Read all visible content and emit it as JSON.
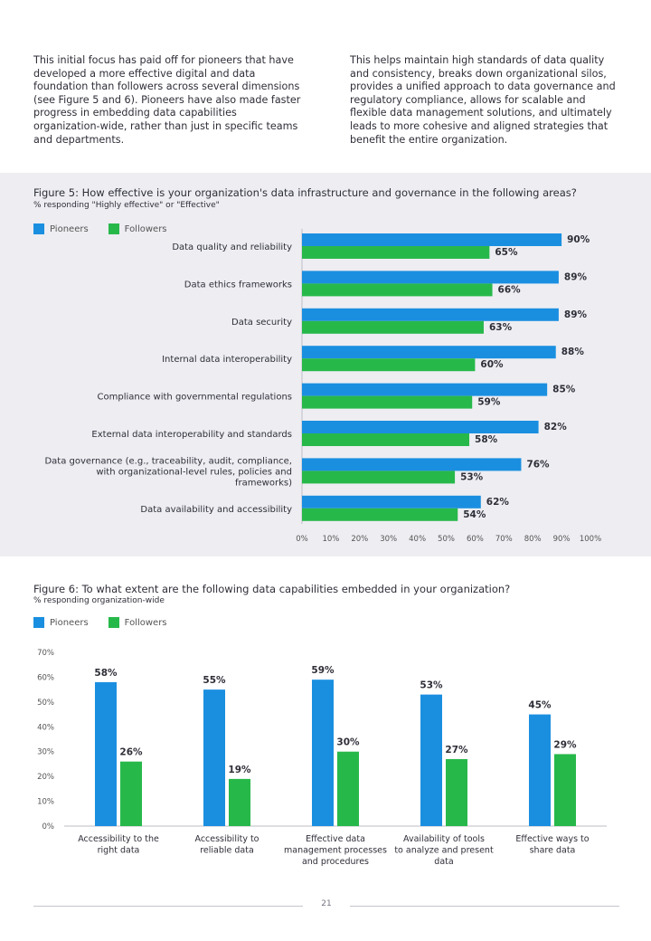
{
  "intro": {
    "left": "This initial focus has paid off for pioneers that have developed a more effective digital and data foundation than followers across several dimensions (see Figure 5 and 6). Pioneers have also made faster progress in embedding data capabilities organization-wide, rather than just in specific teams and departments.",
    "right": "This helps maintain high standards of data quality and consistency, breaks down organizational silos, provides a unified approach to data governance and regulatory compliance, allows for scalable and flexible data management solutions, and ultimately leads to more cohesive and aligned strategies that benefit the entire organization."
  },
  "colors": {
    "pioneers": "#1a8fe0",
    "followers": "#27b84a"
  },
  "chart_data": [
    {
      "type": "bar",
      "orientation": "horizontal",
      "title": "Figure 5: How effective is your organization's data infrastructure and governance in the following areas?",
      "subtitle": "% responding \"Highly effective\" or \"Effective\"",
      "categories": [
        "Data quality and reliability",
        "Data ethics frameworks",
        "Data security",
        "Internal data interoperability",
        "Compliance with governmental regulations",
        "External data interoperability and standards",
        "Data governance (e.g., traceability, audit, compliance, with organizational-level rules, policies and frameworks)",
        "Data availability and accessibility"
      ],
      "series": [
        {
          "name": "Pioneers",
          "values": [
            90,
            89,
            89,
            88,
            85,
            82,
            76,
            62
          ]
        },
        {
          "name": "Followers",
          "values": [
            65,
            66,
            63,
            60,
            59,
            58,
            53,
            54
          ]
        }
      ],
      "ticks": [
        "0%",
        "10%",
        "20%",
        "30%",
        "40%",
        "50%",
        "60%",
        "70%",
        "80%",
        "90%",
        "100%"
      ],
      "xlim": [
        0,
        100
      ],
      "legend": "top-left",
      "grid": false
    },
    {
      "type": "bar",
      "orientation": "vertical",
      "title": "Figure 6: To what extent are the following data capabilities embedded in your organization?",
      "subtitle": "% responding organization-wide",
      "categories": [
        "Accessibility to the right data",
        "Accessibility to reliable data",
        "Effective data management processes and procedures",
        "Availability of tools to analyze and present data",
        "Effective ways to share data"
      ],
      "series": [
        {
          "name": "Pioneers",
          "values": [
            58,
            55,
            59,
            53,
            45
          ]
        },
        {
          "name": "Followers",
          "values": [
            26,
            19,
            30,
            27,
            29
          ]
        }
      ],
      "ticks": [
        "0%",
        "10%",
        "20%",
        "30%",
        "40%",
        "50%",
        "60%",
        "70%"
      ],
      "ylim": [
        0,
        70
      ],
      "legend": "top-left",
      "grid": false
    }
  ],
  "page_number": "21"
}
